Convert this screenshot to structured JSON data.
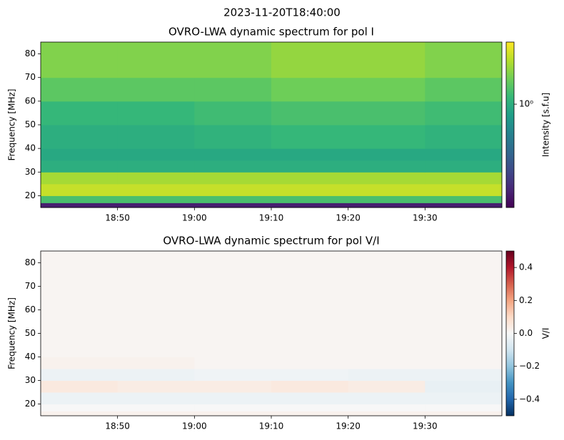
{
  "title": "2023-11-20T18:40:00",
  "chart_data": [
    {
      "type": "heatmap",
      "title": "OVRO-LWA dynamic spectrum for pol I",
      "ylabel": "Frequency [MHz]",
      "xlim": [
        "18:40",
        "19:40"
      ],
      "xticks": [
        "18:50",
        "19:00",
        "19:10",
        "19:20",
        "19:30"
      ],
      "ylim": [
        15,
        85
      ],
      "yticks": [
        20,
        30,
        40,
        50,
        60,
        70,
        80
      ],
      "xbins": [
        "18:40",
        "18:50",
        "19:00",
        "19:10",
        "19:20",
        "19:30",
        "19:40"
      ],
      "ybins": [
        15,
        17,
        20,
        25,
        30,
        35,
        40,
        50,
        60,
        70,
        85
      ],
      "values": [
        [
          0.3,
          0.3,
          0.3,
          0.3,
          0.3,
          0.3
        ],
        [
          1.2,
          1.2,
          1.2,
          1.2,
          1.2,
          1.2
        ],
        [
          1.9,
          1.9,
          1.9,
          1.9,
          1.9,
          1.9
        ],
        [
          1.7,
          1.7,
          1.7,
          1.7,
          1.7,
          1.7
        ],
        [
          1.0,
          1.0,
          1.0,
          1.0,
          1.0,
          1.0
        ],
        [
          0.95,
          0.95,
          0.95,
          0.95,
          0.95,
          0.95
        ],
        [
          1.0,
          1.0,
          1.05,
          1.1,
          1.1,
          1.05
        ],
        [
          1.1,
          1.1,
          1.15,
          1.2,
          1.2,
          1.15
        ],
        [
          1.3,
          1.3,
          1.3,
          1.4,
          1.4,
          1.3
        ],
        [
          1.5,
          1.5,
          1.5,
          1.6,
          1.6,
          1.5
        ]
      ],
      "colorbar": {
        "label": "Intensity [s.f.u]",
        "scale": "log",
        "colormap": "viridis",
        "lim": [
          0.25,
          2.3
        ],
        "ticks": [
          {
            "value": 1,
            "label": "10⁰"
          }
        ]
      }
    },
    {
      "type": "heatmap",
      "title": "OVRO-LWA dynamic spectrum for pol V/I",
      "ylabel": "Frequency [MHz]",
      "xlim": [
        "18:40",
        "19:40"
      ],
      "xticks": [
        "18:50",
        "19:00",
        "19:10",
        "19:20",
        "19:30"
      ],
      "ylim": [
        15,
        85
      ],
      "yticks": [
        20,
        30,
        40,
        50,
        60,
        70,
        80
      ],
      "xbins": [
        "18:40",
        "18:50",
        "19:00",
        "19:10",
        "19:20",
        "19:30",
        "19:40"
      ],
      "ybins": [
        15,
        17,
        20,
        25,
        30,
        35,
        40,
        50,
        60,
        70,
        85
      ],
      "values": [
        [
          0.02,
          0.02,
          0.02,
          0.02,
          0.02,
          0.02
        ],
        [
          0.0,
          0.0,
          0.0,
          0.0,
          0.0,
          0.0
        ],
        [
          -0.03,
          -0.03,
          -0.03,
          -0.03,
          -0.03,
          -0.03
        ],
        [
          0.05,
          0.04,
          0.04,
          0.05,
          0.04,
          -0.04
        ],
        [
          -0.03,
          -0.03,
          -0.02,
          -0.02,
          -0.03,
          -0.03
        ],
        [
          0.02,
          0.02,
          0.01,
          0.01,
          0.01,
          0.01
        ],
        [
          0.01,
          0.01,
          0.01,
          0.01,
          0.01,
          0.01
        ],
        [
          0.01,
          0.01,
          0.01,
          0.01,
          0.01,
          0.01
        ],
        [
          0.01,
          0.01,
          0.01,
          0.01,
          0.01,
          0.01
        ],
        [
          0.01,
          0.01,
          0.01,
          0.01,
          0.01,
          0.01
        ]
      ],
      "colorbar": {
        "label": "V/I",
        "scale": "linear",
        "colormap": "RdBu_r",
        "lim": [
          -0.5,
          0.5
        ],
        "ticks": [
          {
            "value": -0.4,
            "label": "−0.4"
          },
          {
            "value": -0.2,
            "label": "−0.2"
          },
          {
            "value": 0,
            "label": "0.0"
          },
          {
            "value": 0.2,
            "label": "0.2"
          },
          {
            "value": 0.4,
            "label": "0.4"
          }
        ]
      }
    }
  ]
}
